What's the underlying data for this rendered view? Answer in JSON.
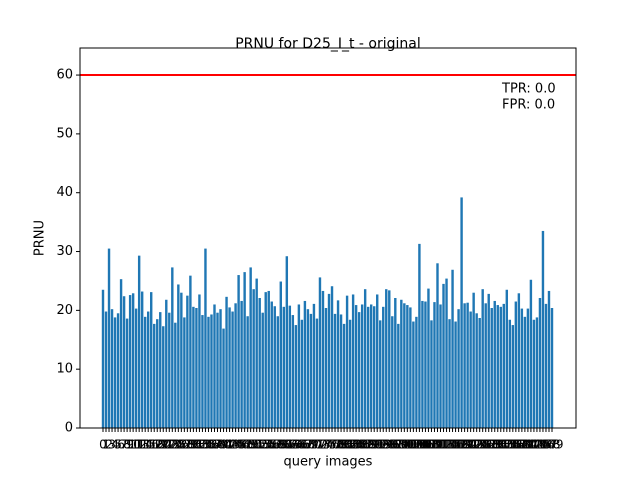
{
  "chart_data": {
    "type": "bar",
    "title": "PRNU for D25_I_t - original",
    "xlabel": "query images",
    "ylabel": "PRNU",
    "color": "#1f77b4",
    "threshold": 60,
    "threshold_color": "#ff0000",
    "annotations": [
      "TPR: 0.0",
      "FPR: 0.0"
    ],
    "categories": [
      0,
      1,
      2,
      3,
      4,
      5,
      6,
      7,
      8,
      9,
      10,
      11,
      12,
      13,
      14,
      15,
      16,
      17,
      18,
      19,
      20,
      21,
      22,
      23,
      24,
      25,
      26,
      27,
      28,
      29,
      30,
      31,
      32,
      33,
      34,
      35,
      36,
      37,
      38,
      39,
      40,
      41,
      42,
      43,
      44,
      45,
      46,
      47,
      48,
      49,
      50,
      51,
      52,
      53,
      54,
      55,
      56,
      57,
      58,
      59,
      60,
      61,
      62,
      63,
      64,
      65,
      66,
      67,
      68,
      69,
      70,
      71,
      72,
      73,
      74,
      75,
      76,
      77,
      78,
      79,
      80,
      81,
      82,
      83,
      84,
      85,
      86,
      87,
      88,
      89,
      90,
      91,
      92,
      93,
      94,
      95,
      96,
      97,
      98,
      99,
      100,
      101,
      102,
      103,
      104,
      105,
      106,
      107,
      108,
      109,
      110,
      111,
      112,
      113,
      114,
      115,
      116,
      117,
      118,
      119,
      120,
      121,
      122,
      123,
      124,
      125,
      126,
      127,
      128,
      129,
      130,
      131,
      132,
      133,
      134,
      135,
      136,
      137,
      138,
      139,
      140,
      141,
      142,
      143,
      144,
      145,
      146,
      147,
      148,
      149
    ],
    "values": [
      23.5,
      19.8,
      30.5,
      20.2,
      18.8,
      19.5,
      25.3,
      22.4,
      18.6,
      22.6,
      22.9,
      20.3,
      29.3,
      23.2,
      18.9,
      19.8,
      23.1,
      17.7,
      18.5,
      19.7,
      17.3,
      21.8,
      19.6,
      27.3,
      17.9,
      24.4,
      23.0,
      18.8,
      22.5,
      25.9,
      20.6,
      20.4,
      22.7,
      19.2,
      30.5,
      18.9,
      19.3,
      21.0,
      19.6,
      20.2,
      16.9,
      22.3,
      20.5,
      19.8,
      21.2,
      26.0,
      21.6,
      26.5,
      19.0,
      27.3,
      23.6,
      25.4,
      22.1,
      19.6,
      23.1,
      23.3,
      21.5,
      20.7,
      19.0,
      24.9,
      20.6,
      29.2,
      20.8,
      19.2,
      17.5,
      21.0,
      18.4,
      21.6,
      20.2,
      19.4,
      21.1,
      18.6,
      25.6,
      23.3,
      20.4,
      22.8,
      24.1,
      19.4,
      21.7,
      19.3,
      17.7,
      22.5,
      18.4,
      22.7,
      20.9,
      19.7,
      21.0,
      23.6,
      20.6,
      21.0,
      20.7,
      22.7,
      18.3,
      20.6,
      23.6,
      23.4,
      19.0,
      22.1,
      17.7,
      21.8,
      21.2,
      20.9,
      20.5,
      18.1,
      18.9,
      31.3,
      21.6,
      21.5,
      23.7,
      18.3,
      21.4,
      28.0,
      21.0,
      24.5,
      25.4,
      18.5,
      26.9,
      18.1,
      20.2,
      39.2,
      21.2,
      21.3,
      19.8,
      23.0,
      19.5,
      18.7,
      23.6,
      21.2,
      22.8,
      20.4,
      21.6,
      20.9,
      20.6,
      21.1,
      23.5,
      18.4,
      17.5,
      21.5,
      22.9,
      20.3,
      18.9,
      20.3,
      25.2,
      18.4,
      18.8,
      22.1,
      33.5,
      21.1,
      23.3,
      20.4
    ],
    "ylim": [
      0,
      64.6
    ],
    "yticks": [
      0,
      10,
      20,
      30,
      40,
      50,
      60
    ]
  }
}
